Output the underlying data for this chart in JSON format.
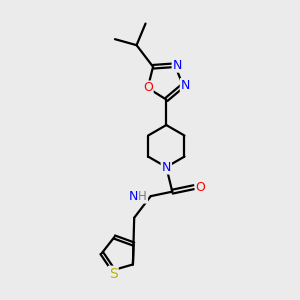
{
  "background_color": "#ebebeb",
  "line_color": "#000000",
  "atom_colors": {
    "N": "#0000ff",
    "O": "#ff0000",
    "S": "#b8b800",
    "H": "#777777",
    "C": "#000000"
  },
  "line_width": 1.6,
  "font_size": 9,
  "figsize": [
    3.0,
    3.0
  ],
  "dpi": 100
}
